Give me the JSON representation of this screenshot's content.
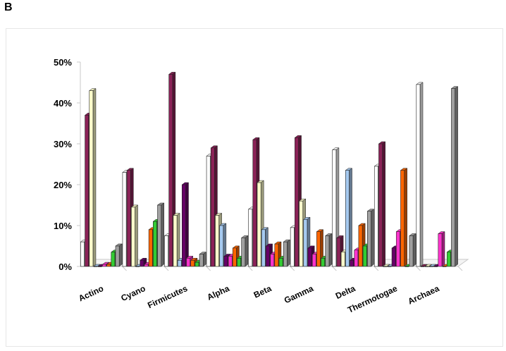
{
  "panel_label": "B",
  "chart_data": {
    "type": "bar",
    "categories": [
      "Actino",
      "Cyano",
      "Firmicutes",
      "Alpha",
      "Beta",
      "Gamma",
      "Delta",
      "Thermotogae",
      "Archaea"
    ],
    "y_tick_labels": [
      "0%",
      "10%",
      "20%",
      "30%",
      "40%",
      "50%"
    ],
    "ylim": [
      0,
      50
    ],
    "grid": false,
    "legend": "none",
    "series": [
      {
        "color": "#ffffff",
        "values": [
          6,
          23,
          7.5,
          27,
          14,
          9.5,
          28.5,
          24.5,
          44.5
        ]
      },
      {
        "color": "#8b2257",
        "values": [
          37,
          23.5,
          47,
          29,
          31,
          31.5,
          7,
          30,
          0
        ]
      },
      {
        "color": "#ffffcc",
        "values": [
          43,
          14.5,
          12.5,
          12.5,
          20.5,
          16,
          3.5,
          0,
          0
        ]
      },
      {
        "color": "#a6caf0",
        "values": [
          0,
          0,
          1.5,
          10,
          9,
          11.5,
          23.5,
          0,
          0
        ]
      },
      {
        "color": "#660066",
        "values": [
          0,
          1.5,
          20,
          2.5,
          5,
          4.5,
          1.5,
          4.5,
          0
        ]
      },
      {
        "color": "#ff33cc",
        "values": [
          0.5,
          0.5,
          2,
          2.5,
          3,
          3,
          4,
          8.5,
          8
        ]
      },
      {
        "color": "#ff6600",
        "values": [
          0.5,
          9,
          1.5,
          4.5,
          5.5,
          8.5,
          10,
          23.5,
          0
        ]
      },
      {
        "color": "#33cc33",
        "values": [
          3.5,
          11,
          1,
          2,
          2,
          2,
          5,
          0,
          3.5
        ]
      },
      {
        "color": "#a0a0a0",
        "values": [
          5,
          15,
          3,
          7,
          6,
          7.5,
          13.5,
          7.5,
          43.5
        ]
      }
    ]
  }
}
